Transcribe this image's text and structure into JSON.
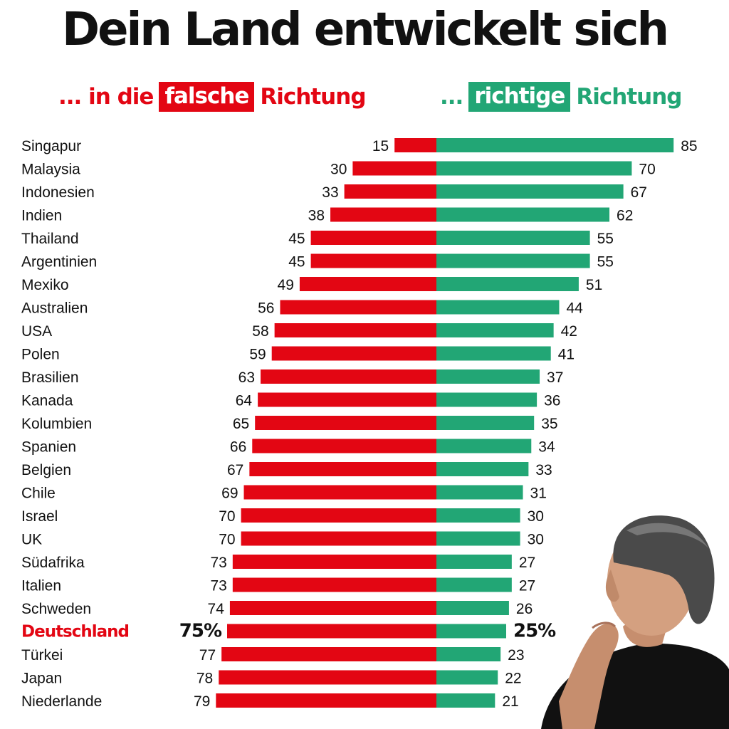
{
  "header": {
    "title": "Dein Land entwickelt sich",
    "left_prefix": "... in die",
    "left_box": "falsche",
    "left_suffix": "Richtung",
    "right_prefix": "...",
    "right_box": "richtige",
    "right_suffix": "Richtung"
  },
  "colors": {
    "negative": "#e30613",
    "positive": "#22a675",
    "highlight_label": "#e30613"
  },
  "illustration": {
    "description_icon": "thinking-man-photo"
  },
  "chart_data": {
    "type": "bar",
    "orientation": "horizontal-diverging",
    "categories": [
      "Singapur",
      "Malaysia",
      "Indonesien",
      "Indien",
      "Thailand",
      "Argentinien",
      "Mexiko",
      "Australien",
      "USA",
      "Polen",
      "Brasilien",
      "Kanada",
      "Kolumbien",
      "Spanien",
      "Belgien",
      "Chile",
      "Israel",
      "UK",
      "Südafrika",
      "Italien",
      "Schweden",
      "Deutschland",
      "Türkei",
      "Japan",
      "Niederlande"
    ],
    "series": [
      {
        "name": "falsche Richtung",
        "values": [
          15,
          30,
          33,
          38,
          45,
          45,
          49,
          56,
          58,
          59,
          63,
          64,
          65,
          66,
          67,
          69,
          70,
          70,
          73,
          73,
          74,
          75,
          77,
          78,
          79
        ]
      },
      {
        "name": "richtige Richtung",
        "values": [
          85,
          70,
          67,
          62,
          55,
          55,
          51,
          44,
          42,
          41,
          37,
          36,
          35,
          34,
          33,
          31,
          30,
          30,
          27,
          27,
          26,
          25,
          23,
          22,
          21
        ]
      }
    ],
    "highlight": {
      "category": "Deutschland",
      "left_label": "75%",
      "right_label": "25%"
    },
    "xlim": [
      0,
      100
    ],
    "grid": false,
    "legend": "top"
  }
}
